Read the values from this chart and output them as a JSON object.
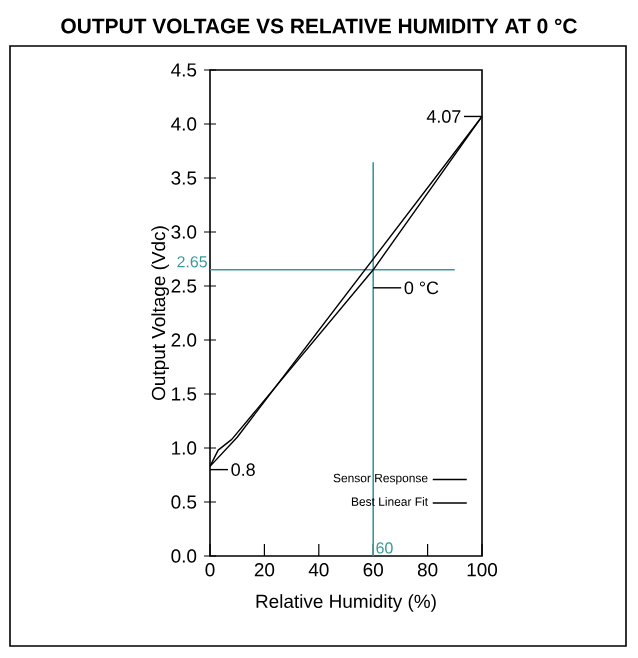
{
  "chart_data": {
    "type": "line",
    "title": "OUTPUT VOLTAGE VS RELATIVE  HUMIDITY AT 0 °C",
    "xlabel": "Relative Humidity (%)",
    "ylabel": "Output Voltage (Vdc)",
    "xlim": [
      0,
      100
    ],
    "ylim": [
      0,
      4.5
    ],
    "xticks": [
      0,
      20,
      40,
      60,
      80,
      100
    ],
    "yticks": [
      {
        "value": 0,
        "label": "0.0"
      },
      {
        "value": 0.5,
        "label": "0.5"
      },
      {
        "value": 1,
        "label": "1.0"
      },
      {
        "value": 1.5,
        "label": "1.5"
      },
      {
        "value": 2,
        "label": "2.0"
      },
      {
        "value": 2.5,
        "label": "2.5"
      },
      {
        "value": 3,
        "label": "3.0"
      },
      {
        "value": 3.5,
        "label": "3.5"
      },
      {
        "value": 4,
        "label": "4.0"
      },
      {
        "value": 4.5,
        "label": "4.5"
      }
    ],
    "series": [
      {
        "name": "Sensor Response",
        "color": "#000000",
        "x": [
          0,
          3,
          8,
          60,
          100
        ],
        "values": [
          0.83,
          0.98,
          1.08,
          2.65,
          4.07
        ]
      },
      {
        "name": "Best Linear Fit",
        "color": "#000000",
        "x": [
          0,
          10,
          100
        ],
        "values": [
          0.83,
          1.1,
          4.07
        ]
      }
    ],
    "ref_lines": [
      {
        "axis": "y",
        "value": 2.65,
        "label": "2.65",
        "color": "#3a9a9a"
      },
      {
        "axis": "x",
        "value": 60,
        "label": "60",
        "color": "#3a9a9a"
      }
    ],
    "annotations": [
      {
        "text": "4.07",
        "x": 100,
        "y": 4.07
      },
      {
        "text": "0.8",
        "x": 0,
        "y": 0.8
      },
      {
        "text": "0 °C",
        "x": 60,
        "y": 2.65
      }
    ],
    "legend": "bottom right",
    "grid": false,
    "marker": "none",
    "line_style": "solid"
  }
}
